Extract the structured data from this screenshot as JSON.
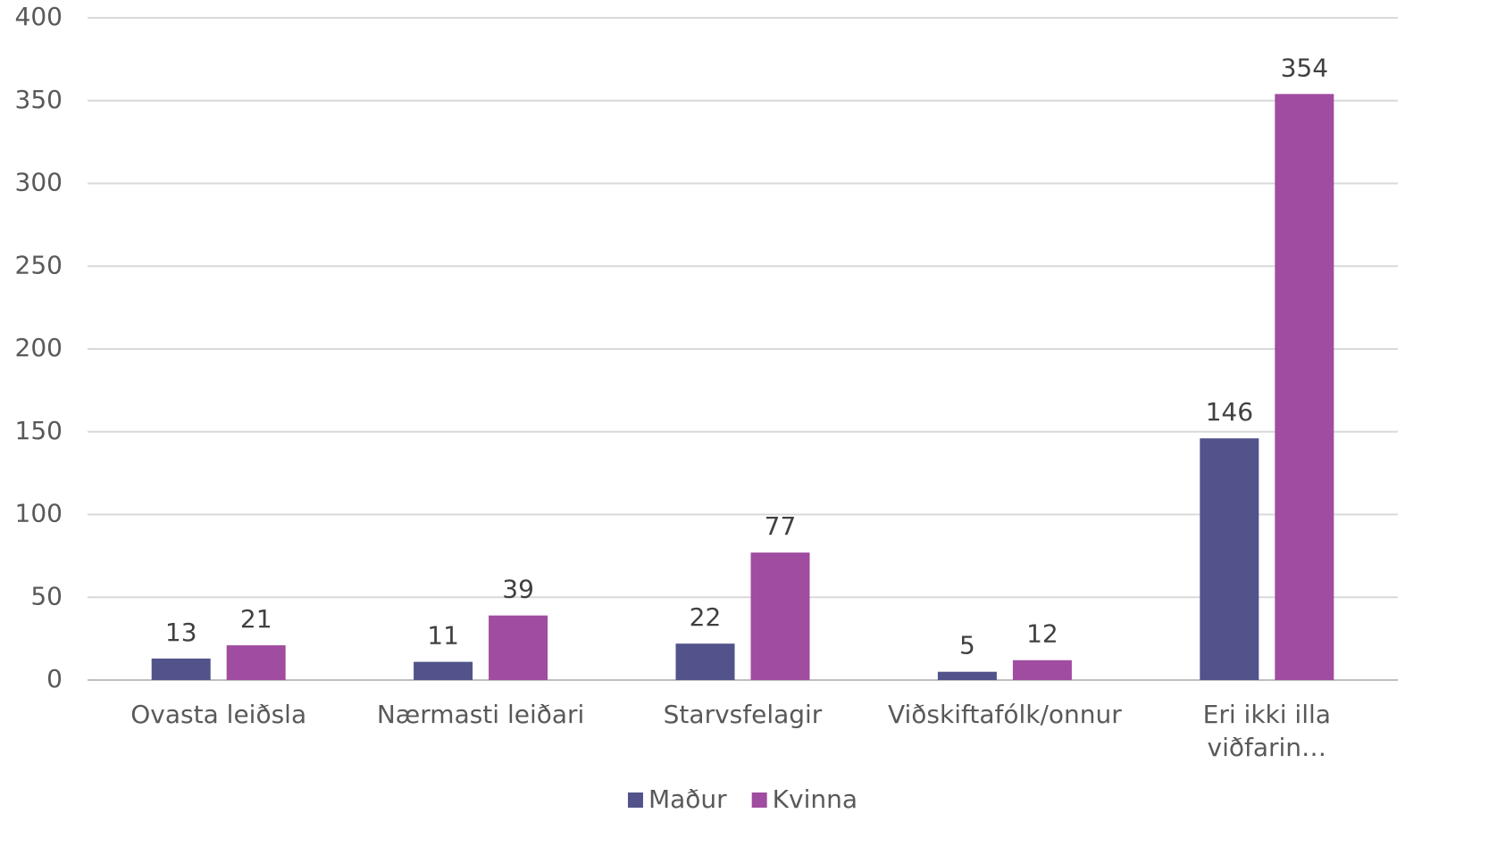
{
  "chart_data": {
    "type": "bar",
    "categories": [
      "Ovasta leiðsla",
      "Nærmasti leiðari",
      "Starvsfelagir",
      "Viðskiftafólk/onnur",
      "Eri ikki illa viðfarin…"
    ],
    "series": [
      {
        "name": "Maður",
        "color": "#52538a",
        "values": [
          13,
          11,
          22,
          5,
          146
        ]
      },
      {
        "name": "Kvinna",
        "color": "#a04ca0",
        "values": [
          21,
          39,
          77,
          12,
          354
        ]
      }
    ],
    "ylim": [
      0,
      400
    ],
    "yticks": [
      0,
      50,
      100,
      150,
      200,
      250,
      300,
      350,
      400
    ],
    "grid": true,
    "legend": "bottom"
  }
}
